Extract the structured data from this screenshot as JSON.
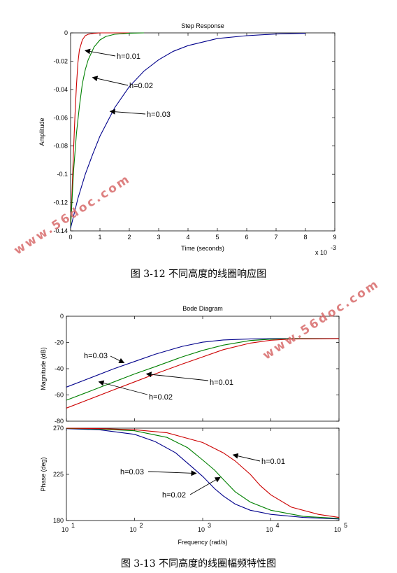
{
  "captions": {
    "fig1": "图 3-12 不同高度的线圈响应图",
    "fig2": "图 3-13 不同高度的线圈幅频特性图"
  },
  "watermark": "www.56doc.com",
  "chart_data": [
    {
      "type": "line",
      "title": "Step Response",
      "xlabel": "Time (seconds)",
      "ylabel": "Amplitude",
      "x_exponent_label": "x 10",
      "x_exponent_power": "-3",
      "xlim": [
        0,
        9
      ],
      "ylim": [
        -0.14,
        0
      ],
      "xticks": [
        0,
        1,
        2,
        3,
        4,
        5,
        6,
        7,
        8,
        9
      ],
      "yticks": [
        0,
        -0.02,
        -0.04,
        -0.06,
        -0.08,
        -0.1,
        -0.12,
        -0.14
      ],
      "grid": false,
      "series": [
        {
          "name": "h=0.01",
          "color": "#cc0000",
          "x": [
            0,
            0.05,
            0.1,
            0.15,
            0.2,
            0.25,
            0.3,
            0.4,
            0.5,
            0.6,
            0.8,
            1.0,
            1.5,
            2.0
          ],
          "y": [
            -0.138,
            -0.112,
            -0.083,
            -0.058,
            -0.037,
            -0.021,
            -0.012,
            -0.005,
            -0.002,
            -0.001,
            -0.0003,
            0,
            0,
            0
          ]
        },
        {
          "name": "h=0.02",
          "color": "#008000",
          "x": [
            0,
            0.1,
            0.2,
            0.3,
            0.4,
            0.5,
            0.6,
            0.8,
            1.0,
            1.2,
            1.5,
            2.0,
            2.5
          ],
          "y": [
            -0.138,
            -0.098,
            -0.071,
            -0.052,
            -0.036,
            -0.026,
            -0.019,
            -0.01,
            -0.005,
            -0.0025,
            -0.001,
            -0.0002,
            0
          ]
        },
        {
          "name": "h=0.03",
          "color": "#00008b",
          "x": [
            0,
            0.25,
            0.5,
            0.75,
            1.0,
            1.5,
            2.0,
            2.5,
            3.0,
            3.5,
            4.0,
            5.0,
            6.0,
            7.0,
            8.0
          ],
          "y": [
            -0.138,
            -0.117,
            -0.1,
            -0.086,
            -0.073,
            -0.053,
            -0.038,
            -0.027,
            -0.019,
            -0.013,
            -0.009,
            -0.004,
            -0.002,
            -0.0008,
            -0.0003
          ]
        }
      ],
      "annotations": [
        {
          "text": "h=0.01",
          "target": [
            0.5,
            -0.0125
          ]
        },
        {
          "text": "h=0.02",
          "target": [
            0.75,
            -0.0315
          ]
        },
        {
          "text": "h=0.03",
          "target": [
            1.35,
            -0.0555
          ]
        }
      ]
    },
    {
      "type": "line",
      "title": "Bode Diagram",
      "subplot": "magnitude",
      "xlabel": "",
      "ylabel": "Magnitude (dB)",
      "xscale": "log",
      "xlim": [
        10,
        100000
      ],
      "ylim": [
        -80,
        0
      ],
      "yticks": [
        0,
        -20,
        -40,
        -60,
        -80
      ],
      "grid": false,
      "series": [
        {
          "name": "h=0.03",
          "color": "#00008b",
          "x": [
            10,
            20,
            50,
            100,
            200,
            500,
            1000,
            2000,
            5000,
            10000,
            20000,
            100000
          ],
          "y": [
            -54,
            -48,
            -40,
            -34.5,
            -29,
            -23,
            -19.8,
            -18.1,
            -17.3,
            -17.1,
            -17,
            -17
          ]
        },
        {
          "name": "h=0.02",
          "color": "#008000",
          "x": [
            10,
            20,
            50,
            100,
            200,
            500,
            1000,
            2000,
            5000,
            10000,
            20000,
            100000
          ],
          "y": [
            -64,
            -58,
            -50,
            -44,
            -38.5,
            -31,
            -26,
            -22,
            -18.5,
            -17.5,
            -17.1,
            -17
          ]
        },
        {
          "name": "h=0.01",
          "color": "#cc0000",
          "x": [
            10,
            20,
            50,
            100,
            200,
            500,
            1000,
            2000,
            5000,
            10000,
            20000,
            100000
          ],
          "y": [
            -70,
            -64,
            -56,
            -50,
            -44,
            -36.5,
            -31,
            -25.5,
            -20.5,
            -18.3,
            -17.4,
            -17
          ]
        }
      ],
      "annotations": [
        {
          "text": "h=0.03",
          "target": [
            70,
            -35.5
          ]
        },
        {
          "text": "h=0.01",
          "target": [
            150,
            -44
          ]
        },
        {
          "text": "h=0.02",
          "target": [
            30,
            -50
          ]
        }
      ]
    },
    {
      "type": "line",
      "subplot": "phase",
      "xlabel": "Frequency  (rad/s)",
      "ylabel": "Phase (deg)",
      "xscale": "log",
      "xlim": [
        10,
        100000
      ],
      "ylim": [
        180,
        270
      ],
      "yticks": [
        270,
        225,
        180
      ],
      "xticks": [
        10,
        100,
        1000,
        10000,
        100000
      ],
      "xtick_labels": [
        [
          "10",
          "1"
        ],
        [
          "10",
          "2"
        ],
        [
          "10",
          "3"
        ],
        [
          "10",
          "4"
        ],
        [
          "10",
          "5"
        ]
      ],
      "grid": false,
      "series": [
        {
          "name": "h=0.03",
          "color": "#00008b",
          "x": [
            10,
            30,
            100,
            200,
            400,
            700,
            1000,
            1500,
            2000,
            3000,
            5000,
            10000,
            30000,
            100000
          ],
          "y": [
            269.5,
            268.5,
            264,
            257,
            246,
            232,
            223,
            211,
            204,
            196,
            190,
            186,
            183,
            181.5
          ]
        },
        {
          "name": "h=0.02",
          "color": "#008000",
          "x": [
            10,
            30,
            100,
            300,
            600,
            1000,
            1500,
            2000,
            3000,
            5000,
            10000,
            30000,
            100000
          ],
          "y": [
            269.8,
            269.2,
            267.5,
            261,
            251,
            239,
            229,
            220,
            208,
            198,
            190,
            184,
            182
          ]
        },
        {
          "name": "h=0.01",
          "color": "#cc0000",
          "x": [
            10,
            30,
            100,
            300,
            1000,
            2000,
            3000,
            5000,
            7000,
            10000,
            20000,
            50000,
            100000
          ],
          "y": [
            270,
            269.6,
            268.5,
            265.5,
            256,
            246,
            238,
            225,
            214,
            205,
            193,
            186,
            183
          ]
        }
      ],
      "annotations": [
        {
          "text": "h=0.01",
          "target": [
            2800,
            244
          ]
        },
        {
          "text": "h=0.03",
          "target": [
            800,
            226
          ]
        },
        {
          "text": "h=0.02",
          "target": [
            1800,
            222
          ]
        }
      ]
    }
  ]
}
